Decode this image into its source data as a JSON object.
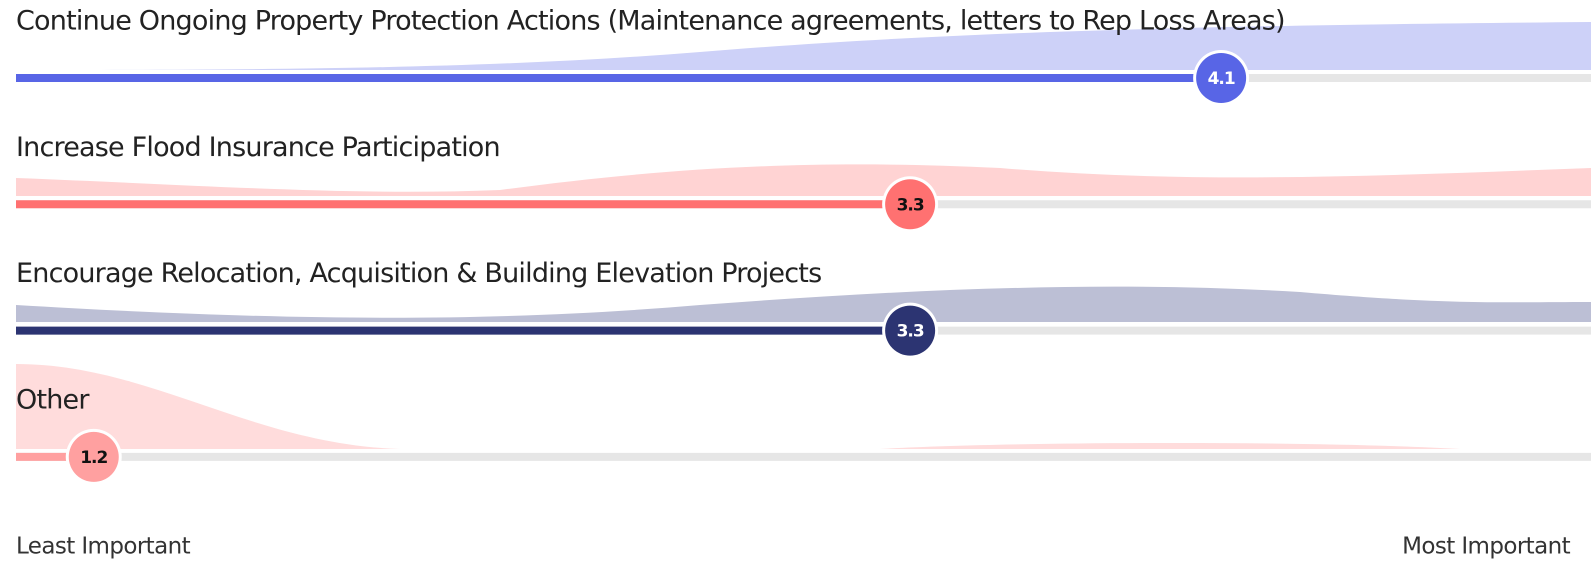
{
  "chart_data": {
    "type": "scale",
    "xlim": [
      1,
      5
    ],
    "categories": [
      "Continue Ongoing Property Protection Actions (Maintenance agreements, letters to Rep Loss Areas)",
      "Increase Flood Insurance Participation",
      "Encourage Relocation, Acquisition & Building Elevation Projects",
      "Other"
    ],
    "values": [
      4.1,
      3.3,
      3.3,
      1.2
    ],
    "colors": [
      "#5865e6",
      "#ff7171",
      "#2c3472",
      "#ffa0a0"
    ],
    "min_label": "Least Important",
    "max_label": "Most Important"
  }
}
